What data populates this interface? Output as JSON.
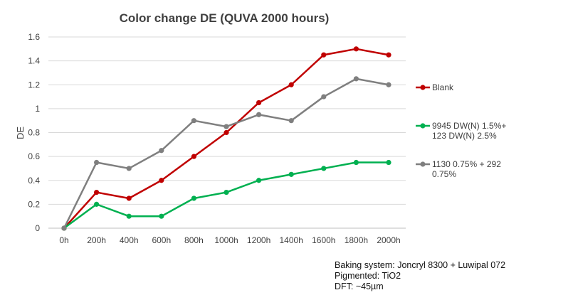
{
  "chart_data": {
    "type": "line",
    "title": "Color change DE (QUVA 2000 hours)",
    "xlabel": "",
    "ylabel": "DE",
    "categories": [
      "0h",
      "200h",
      "400h",
      "600h",
      "800h",
      "1000h",
      "1200h",
      "1400h",
      "1600h",
      "1800h",
      "2000h"
    ],
    "ylim": [
      0,
      1.6
    ],
    "yticks": [
      "0",
      "0.2",
      "0.4",
      "0.6",
      "0.8",
      "1",
      "1.2",
      "1.4",
      "1.6"
    ],
    "grid": true,
    "legend_position": "right",
    "series": [
      {
        "name": "Blank",
        "legend_lines": [
          "Blank"
        ],
        "color": "#c00000",
        "values": [
          0,
          0.3,
          0.25,
          0.4,
          0.6,
          0.8,
          1.05,
          1.2,
          1.45,
          1.5,
          1.45
        ]
      },
      {
        "name": "9945 DW(N) 1.5%+ 123 DW(N) 2.5%",
        "legend_lines": [
          "9945 DW(N) 1.5%+",
          "123 DW(N) 2.5%"
        ],
        "color": "#00b050",
        "values": [
          0,
          0.2,
          0.1,
          0.1,
          0.25,
          0.3,
          0.4,
          0.45,
          0.5,
          0.55,
          0.55
        ]
      },
      {
        "name": "1130 0.75% + 292 0.75%",
        "legend_lines": [
          "1130 0.75% + 292",
          "0.75%"
        ],
        "color": "#7f7f7f",
        "values": [
          0,
          0.55,
          0.5,
          0.65,
          0.9,
          0.85,
          0.95,
          0.9,
          1.1,
          1.25,
          1.2
        ]
      }
    ]
  },
  "notes": {
    "baking": "Baking system: Joncryl  8300 + Luwipal 072",
    "pigmented": "Pigmented: TiO2",
    "dft": "DFT: ~45µm"
  }
}
